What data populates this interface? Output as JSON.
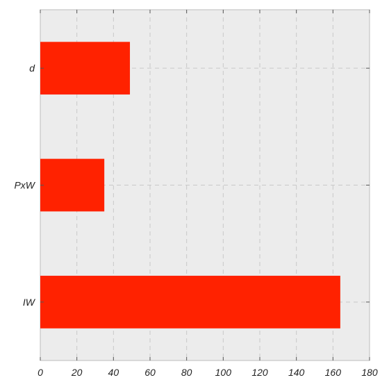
{
  "chart_data": {
    "type": "bar",
    "orientation": "horizontal",
    "categories": [
      "d",
      "PxW",
      "IW"
    ],
    "values": [
      49,
      35,
      164
    ],
    "title": "",
    "xlabel": "",
    "ylabel": "",
    "xlim": [
      0,
      180
    ],
    "xticks": [
      0,
      20,
      40,
      60,
      80,
      100,
      120,
      140,
      160,
      180
    ],
    "xtick_labels": [
      "0",
      "20",
      "40",
      "60",
      "80",
      "100",
      "120",
      "140",
      "160",
      "180"
    ],
    "grid": true,
    "bar_color": "#ff2200",
    "background_color": "#ececec"
  }
}
